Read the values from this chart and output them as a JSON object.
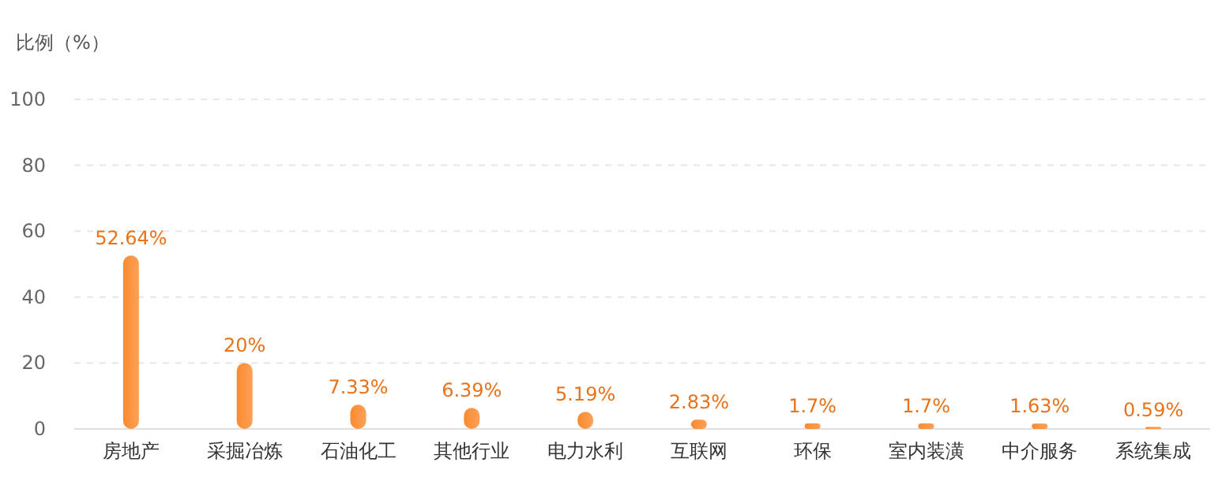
{
  "chart_data": {
    "type": "bar",
    "ylabel": "比例（%）",
    "categories": [
      "房地产",
      "采掘冶炼",
      "石油化工",
      "其他行业",
      "电力水利",
      "互联网",
      "环保",
      "室内装潢",
      "中介服务",
      "系统集成"
    ],
    "values": [
      52.64,
      20,
      7.33,
      6.39,
      5.19,
      2.83,
      1.7,
      1.7,
      1.63,
      0.59
    ],
    "value_labels": [
      "52.64%",
      "20%",
      "7.33%",
      "6.39%",
      "5.19%",
      "2.83%",
      "1.7%",
      "1.7%",
      "1.63%",
      "0.59%"
    ],
    "color": "#fb8a2e",
    "ylim": [
      0,
      100
    ],
    "yticks": [
      0,
      20,
      40,
      60,
      80,
      100
    ],
    "grid": "y"
  }
}
